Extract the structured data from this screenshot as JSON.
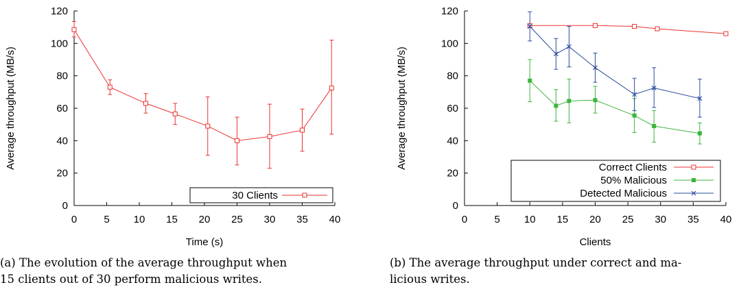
{
  "chart_data": [
    {
      "type": "line",
      "xlabel": "Time (s)",
      "ylabel": "Average throughput (MB/s)",
      "xlim": [
        0,
        40
      ],
      "ylim": [
        0,
        120
      ],
      "xticks": [
        "0",
        "5",
        "10",
        "15",
        "20",
        "25",
        "30",
        "35",
        "40"
      ],
      "yticks": [
        "0",
        "20",
        "40",
        "60",
        "80",
        "100",
        "120"
      ],
      "legend_position": "bottom-right",
      "caption": [
        "(a)  The evolution of the average throughput when",
        "15 clients out of 30 perform malicious writes."
      ],
      "series": [
        {
          "name": "30 Clients",
          "color": "#e8322f",
          "marker": "open-square",
          "x": [
            0,
            5.5,
            11,
            15.5,
            20.5,
            25,
            30,
            35,
            39.5
          ],
          "y": [
            108.5,
            73,
            63,
            56.5,
            49,
            40,
            42.5,
            46.5,
            72.5
          ],
          "err_low": [
            104,
            68.5,
            57,
            50,
            31,
            25,
            23,
            33.5,
            44
          ],
          "err_high": [
            113.5,
            77.5,
            69,
            63,
            67,
            54.5,
            62.5,
            59.5,
            102
          ]
        }
      ]
    },
    {
      "type": "line",
      "xlabel": "Clients",
      "ylabel": "Average throughput (MB/s)",
      "xlim": [
        0,
        40
      ],
      "ylim": [
        0,
        120
      ],
      "xticks": [
        "0",
        "5",
        "10",
        "15",
        "20",
        "25",
        "30",
        "35",
        "40"
      ],
      "yticks": [
        "0",
        "20",
        "40",
        "60",
        "80",
        "100",
        "120"
      ],
      "legend_position": "bottom-right",
      "caption": [
        "(b)  The average throughput under correct and ma-",
        "licious writes."
      ],
      "series": [
        {
          "name": "Correct Clients",
          "color": "#e8322f",
          "marker": "open-square",
          "x": [
            10,
            20,
            26,
            29.5,
            40
          ],
          "y": [
            111,
            111,
            110.5,
            109,
            106
          ],
          "err_low": null,
          "err_high": null
        },
        {
          "name": "50% Malicious",
          "color": "#3cb43c",
          "marker": "filled-square",
          "x": [
            10,
            14,
            16,
            20,
            26,
            29,
            36
          ],
          "y": [
            77,
            61.5,
            64.5,
            65,
            55.5,
            49,
            44.5
          ],
          "err_low": [
            64,
            52,
            51,
            57,
            45,
            39,
            38
          ],
          "err_high": [
            90,
            71.5,
            78,
            73.5,
            66,
            58.5,
            51
          ]
        },
        {
          "name": "Detected Malicious",
          "color": "#2b4a9e",
          "marker": "cross",
          "x": [
            10,
            14,
            16,
            20,
            26,
            29,
            36
          ],
          "y": [
            110.5,
            93.5,
            98,
            85,
            68.5,
            72.5,
            66
          ],
          "err_low": [
            101.5,
            84,
            85.5,
            76,
            58.5,
            60.5,
            54.5
          ],
          "err_high": [
            119.5,
            103,
            110.5,
            94,
            78.5,
            85,
            78
          ]
        }
      ]
    }
  ]
}
